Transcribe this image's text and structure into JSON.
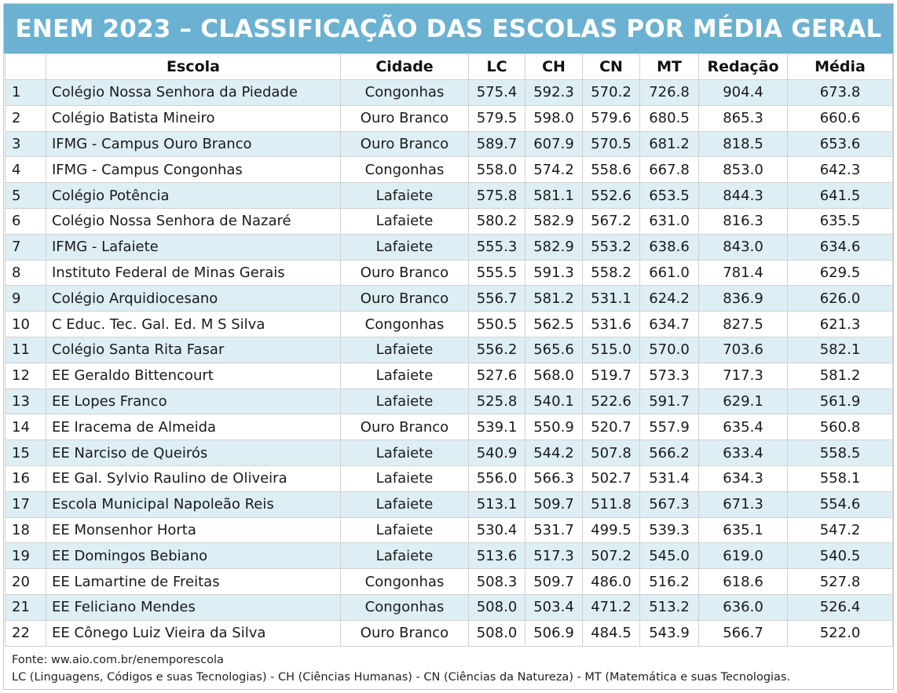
{
  "title": "ENEM 2023 – CLASSIFICAÇÃO DAS ESCOLAS POR MÉDIA GERAL",
  "columns": [
    "",
    "Escola",
    "Cidade",
    "LC",
    "CH",
    "CN",
    "MT",
    "Redação",
    "Média"
  ],
  "rows": [
    [
      "1",
      "Colégio Nossa Senhora da Piedade",
      "Congonhas",
      "575.4",
      "592.3",
      "570.2",
      "726.8",
      "904.4",
      "673.8"
    ],
    [
      "2",
      "Colégio Batista Mineiro",
      "Ouro Branco",
      "579.5",
      "598.0",
      "579.6",
      "680.5",
      "865.3",
      "660.6"
    ],
    [
      "3",
      "IFMG - Campus Ouro Branco",
      "Ouro Branco",
      "589.7",
      "607.9",
      "570.5",
      "681.2",
      "818.5",
      "653.6"
    ],
    [
      "4",
      "IFMG - Campus Congonhas",
      "Congonhas",
      "558.0",
      "574.2",
      "558.6",
      "667.8",
      "853.0",
      "642.3"
    ],
    [
      "5",
      "Colégio Potência",
      "Lafaiete",
      "575.8",
      "581.1",
      "552.6",
      "653.5",
      "844.3",
      "641.5"
    ],
    [
      "6",
      "Colégio Nossa Senhora de Nazaré",
      "Lafaiete",
      "580.2",
      "582.9",
      "567.2",
      "631.0",
      "816.3",
      "635.5"
    ],
    [
      "7",
      "IFMG - Lafaiete",
      "Lafaiete",
      "555.3",
      "582.9",
      "553.2",
      "638.6",
      "843.0",
      "634.6"
    ],
    [
      "8",
      "Instituto Federal de Minas Gerais",
      "Ouro Branco",
      "555.5",
      "591.3",
      "558.2",
      "661.0",
      "781.4",
      "629.5"
    ],
    [
      "9",
      "Colégio Arquidiocesano",
      "Ouro Branco",
      "556.7",
      "581.2",
      "531.1",
      "624.2",
      "836.9",
      "626.0"
    ],
    [
      "10",
      "C Educ. Tec. Gal. Ed. M S Silva",
      "Congonhas",
      "550.5",
      "562.5",
      "531.6",
      "634.7",
      "827.5",
      "621.3"
    ],
    [
      "11",
      "Colégio Santa Rita Fasar",
      "Lafaiete",
      "556.2",
      "565.6",
      "515.0",
      "570.0",
      "703.6",
      "582.1"
    ],
    [
      "12",
      "EE Geraldo Bittencourt",
      "Lafaiete",
      "527.6",
      "568.0",
      "519.7",
      "573.3",
      "717.3",
      "581.2"
    ],
    [
      "13",
      "EE Lopes Franco",
      "Lafaiete",
      "525.8",
      "540.1",
      "522.6",
      "591.7",
      "629.1",
      "561.9"
    ],
    [
      "14",
      "EE Iracema de Almeida",
      "Ouro Branco",
      "539.1",
      "550.9",
      "520.7",
      "557.9",
      "635.4",
      "560.8"
    ],
    [
      "15",
      "EE Narciso de Queirós",
      "Lafaiete",
      "540.9",
      "544.2",
      "507.8",
      "566.2",
      "633.4",
      "558.5"
    ],
    [
      "16",
      "EE Gal. Sylvio Raulino de Oliveira",
      "Lafaiete",
      "556.0",
      "566.3",
      "502.7",
      "531.4",
      "634.3",
      "558.1"
    ],
    [
      "17",
      "Escola Municipal Napoleão Reis",
      "Lafaiete",
      "513.1",
      "509.7",
      "511.8",
      "567.3",
      "671.3",
      "554.6"
    ],
    [
      "18",
      "EE Monsenhor Horta",
      "Lafaiete",
      "530.4",
      "531.7",
      "499.5",
      "539.3",
      "635.1",
      "547.2"
    ],
    [
      "19",
      "EE Domingos Bebiano",
      "Lafaiete",
      "513.6",
      "517.3",
      "507.2",
      "545.0",
      "619.0",
      "540.5"
    ],
    [
      "20",
      "EE Lamartine de Freitas",
      "Congonhas",
      "508.3",
      "509.7",
      "486.0",
      "516.2",
      "618.6",
      "527.8"
    ],
    [
      "21",
      "EE Feliciano Mendes",
      "Congonhas",
      "508.0",
      "503.4",
      "471.2",
      "513.2",
      "636.0",
      "526.4"
    ],
    [
      "22",
      "EE Cônego Luiz Vieira da Silva",
      "Ouro Branco",
      "508.0",
      "506.9",
      "484.5",
      "543.9",
      "566.7",
      "522.0"
    ]
  ],
  "footer": {
    "source": "Fonte: ww.aio.com.br/enemporescola",
    "legend": "LC (Linguagens, Códigos e suas Tecnologias) - CH (Ciências Humanas) - CN (Ciências da Natureza) - MT (Matemática e suas Tecnologias."
  },
  "colors": {
    "title_bg": "#6bb1d1",
    "title_text": "#ffffff",
    "stripe": "#deeef5",
    "border": "#d2d2d2"
  }
}
